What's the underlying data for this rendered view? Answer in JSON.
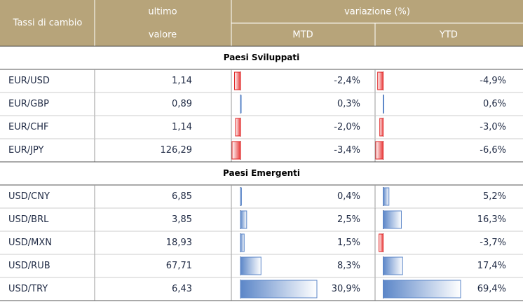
{
  "header": {
    "pair": "Tassi di cambio",
    "last_line1": "ultimo",
    "last_line2": "valore",
    "change": "variazione (%)",
    "mtd": "MTD",
    "ytd": "YTD"
  },
  "sections": [
    {
      "title": "Paesi Sviluppati",
      "rows": [
        {
          "pair": "EUR/USD",
          "last": "1,14",
          "mtd": -2.4,
          "mtd_label": "-2,4%",
          "ytd": -4.9,
          "ytd_label": "-4,9%"
        },
        {
          "pair": "EUR/GBP",
          "last": "0,89",
          "mtd": 0.3,
          "mtd_label": "0,3%",
          "ytd": 0.6,
          "ytd_label": "0,6%"
        },
        {
          "pair": "EUR/CHF",
          "last": "1,14",
          "mtd": -2.0,
          "mtd_label": "-2,0%",
          "ytd": -3.0,
          "ytd_label": "-3,0%"
        },
        {
          "pair": "EUR/JPY",
          "last": "126,29",
          "mtd": -3.4,
          "mtd_label": "-3,4%",
          "ytd": -6.6,
          "ytd_label": "-6,6%"
        }
      ]
    },
    {
      "title": "Paesi Emergenti",
      "rows": [
        {
          "pair": "USD/CNY",
          "last": "6,85",
          "mtd": 0.4,
          "mtd_label": "0,4%",
          "ytd": 5.2,
          "ytd_label": "5,2%"
        },
        {
          "pair": "USD/BRL",
          "last": "3,85",
          "mtd": 2.5,
          "mtd_label": "2,5%",
          "ytd": 16.3,
          "ytd_label": "16,3%"
        },
        {
          "pair": "USD/MXN",
          "last": "18,93",
          "mtd": 1.5,
          "mtd_label": "1,5%",
          "ytd": -3.7,
          "ytd_label": "-3,7%"
        },
        {
          "pair": "USD/RUB",
          "last": "67,71",
          "mtd": 8.3,
          "mtd_label": "8,3%",
          "ytd": 17.4,
          "ytd_label": "17,4%"
        },
        {
          "pair": "USD/TRY",
          "last": "6,43",
          "mtd": 30.9,
          "mtd_label": "30,9%",
          "ytd": 69.4,
          "ytd_label": "69,4%"
        }
      ]
    }
  ]
}
